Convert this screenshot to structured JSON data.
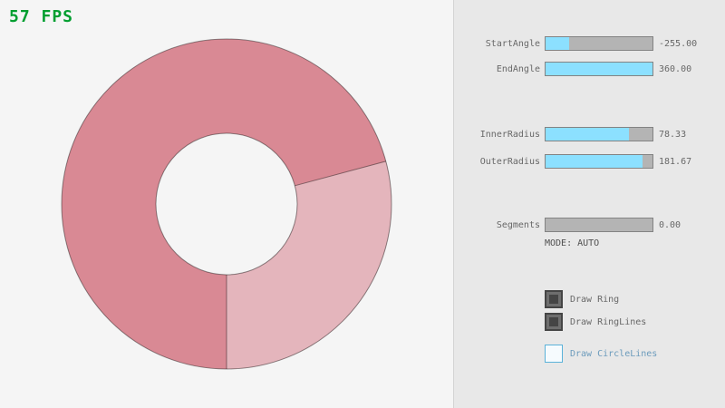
{
  "fps": {
    "text": "57 FPS",
    "color": "#009e2f"
  },
  "ring": {
    "color_main": "#d98994",
    "color_overlap": "#e4b5bc",
    "outline_color": "rgba(0,0,0,0.42)",
    "start_angle": -255.0,
    "end_angle": 360.0,
    "inner_radius": 78.33,
    "outer_radius": 181.67,
    "segments": 0.0
  },
  "controls": {
    "slider_fill_color": "#8ce0ff",
    "sliders": [
      {
        "label": "StartAngle",
        "value": "-255.00",
        "fill_pct": 22
      },
      {
        "label": "EndAngle",
        "value": "360.00",
        "fill_pct": 100
      },
      {
        "label": "InnerRadius",
        "value": "78.33",
        "fill_pct": 78
      },
      {
        "label": "OuterRadius",
        "value": "181.67",
        "fill_pct": 91
      },
      {
        "label": "Segments",
        "value": "0.00",
        "fill_pct": 0
      }
    ],
    "mode_text": "MODE: AUTO",
    "checkboxes": [
      {
        "label": "Draw Ring",
        "checked": true
      },
      {
        "label": "Draw RingLines",
        "checked": true
      },
      {
        "label": "Draw CircleLines",
        "checked": false
      }
    ]
  }
}
